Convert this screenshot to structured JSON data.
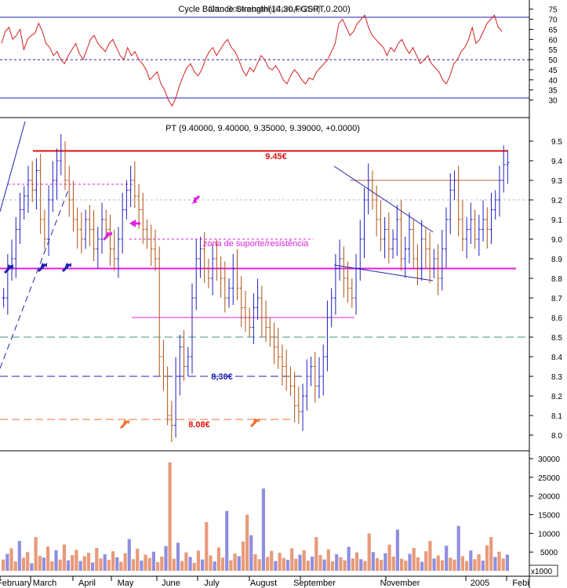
{
  "chart_data": [
    {
      "type": "line",
      "title": "Cycle Balance Strength(14,30,FGSRT,0.200)",
      "title_overlay": "Otto Bookabaleh(ComAx200)",
      "ylim": [
        25,
        76
      ],
      "yticks": [
        30,
        35,
        40,
        45,
        50,
        55,
        60,
        65,
        70,
        75
      ],
      "reference_lines": [
        {
          "value": 71,
          "style": "solid"
        },
        {
          "value": 50,
          "style": "dotted"
        },
        {
          "value": 31,
          "style": "solid"
        }
      ],
      "series": [
        {
          "color": "#d42020",
          "values": [
            58,
            64,
            66,
            60,
            62,
            65,
            55,
            60,
            62,
            63,
            68,
            64,
            58,
            56,
            52,
            54,
            50,
            48,
            52,
            55,
            58,
            53,
            50,
            55,
            60,
            62,
            58,
            56,
            54,
            58,
            60,
            56,
            52,
            50,
            56,
            52,
            54,
            50,
            48,
            45,
            40,
            42,
            44,
            38,
            35,
            30,
            27,
            31,
            37,
            42,
            46,
            48,
            44,
            42,
            45,
            50,
            54,
            56,
            52,
            55,
            58,
            60,
            56,
            54,
            50,
            45,
            42,
            46,
            44,
            48,
            52,
            50,
            46,
            45,
            47,
            44,
            40,
            38,
            42,
            45,
            43,
            40,
            38,
            41,
            40,
            44,
            46,
            48,
            50,
            54,
            58,
            68,
            70,
            66,
            62,
            64,
            68,
            70,
            72,
            66,
            62,
            60,
            58,
            56,
            52,
            56,
            54,
            58,
            60,
            56,
            53,
            56,
            52,
            48,
            50,
            52,
            48,
            46,
            44,
            40,
            38,
            42,
            48,
            50,
            54,
            56,
            60,
            66,
            58,
            60,
            64,
            68,
            70,
            72,
            66,
            64
          ]
        }
      ]
    },
    {
      "type": "candlestick",
      "title": "PT (9.40000, 9.40000, 9.35000, 9.39000, +0.0000)",
      "ylim": [
        7.9,
        9.55
      ],
      "yticks": [
        8.0,
        8.1,
        8.2,
        8.3,
        8.4,
        8.5,
        8.6,
        8.7,
        8.8,
        8.9,
        9.0,
        9.1,
        9.2,
        9.3,
        9.4,
        9.5
      ],
      "x_labels": [
        "February",
        "March",
        "April",
        "May",
        "June",
        "July",
        "August",
        "September",
        "November",
        "2005",
        "Febi"
      ],
      "close_values": [
        8.7,
        8.85,
        8.9,
        9.05,
        9.15,
        9.22,
        9.3,
        9.25,
        9.35,
        9.1,
        9.0,
        9.2,
        9.3,
        9.4,
        9.45,
        9.3,
        9.2,
        9.1,
        9.05,
        9.0,
        9.1,
        9.05,
        8.95,
        9.0,
        9.1,
        9.05,
        8.95,
        8.9,
        9.0,
        9.15,
        9.25,
        9.3,
        9.22,
        9.15,
        9.05,
        9.0,
        8.95,
        8.9,
        8.4,
        8.3,
        8.1,
        8.05,
        8.3,
        8.45,
        8.35,
        8.4,
        8.7,
        8.9,
        8.95,
        8.85,
        8.8,
        8.9,
        8.85,
        8.8,
        8.7,
        8.75,
        8.85,
        8.75,
        8.65,
        8.6,
        8.55,
        8.65,
        8.7,
        8.6,
        8.55,
        8.5,
        8.45,
        8.4,
        8.35,
        8.3,
        8.25,
        8.15,
        8.12,
        8.2,
        8.3,
        8.35,
        8.25,
        8.3,
        8.4,
        8.6,
        8.7,
        8.85,
        8.9,
        8.8,
        8.75,
        8.7,
        8.85,
        9.0,
        9.2,
        9.3,
        9.2,
        9.1,
        9.0,
        9.05,
        8.95,
        9.0,
        9.1,
        8.9,
        8.95,
        9.05,
        8.9,
        8.85,
        9.0,
        8.95,
        8.85,
        8.9,
        8.8,
        8.95,
        9.1,
        9.25,
        9.3,
        9.1,
        9.0,
        9.05,
        9.1,
        9.0,
        9.05,
        9.1,
        9.05,
        9.15,
        9.2,
        9.3,
        9.38,
        9.39
      ],
      "annotations": [
        {
          "text": "9.45€",
          "color": "#e01010"
        },
        {
          "text": "8,30€",
          "color": "#2020b0"
        },
        {
          "text": "8.08€",
          "color": "#e01010"
        },
        {
          "text": "zona de suporte/resistência",
          "color": "#e020e0"
        }
      ],
      "horizontal_lines": [
        {
          "value": 9.45,
          "color": "#e01010",
          "style": "solid"
        },
        {
          "value": 8.85,
          "color": "#e020e0",
          "style": "solid"
        },
        {
          "value": 9.3,
          "color": "#c06040",
          "style": "solid"
        },
        {
          "value": 8.6,
          "color": "#e020e0",
          "style": "solid"
        },
        {
          "value": 8.5,
          "color": "#409080",
          "style": "dashed"
        },
        {
          "value": 8.3,
          "color": "#2020b0",
          "style": "dashed"
        },
        {
          "value": 8.08,
          "color": "#f07030",
          "style": "dashed"
        },
        {
          "value": 9.0,
          "color": "#e020e0",
          "style": "dotted"
        },
        {
          "value": 9.28,
          "color": "#e020e0",
          "style": "dotted"
        },
        {
          "value": 9.2,
          "color": "#bbbbbb",
          "style": "dotted"
        }
      ]
    },
    {
      "type": "bar",
      "title": "",
      "ylabel": "x1000",
      "ylim": [
        0,
        31000
      ],
      "yticks": [
        5000,
        10000,
        15000,
        20000,
        25000,
        30000
      ],
      "values": [
        3000,
        4500,
        6000,
        2500,
        8000,
        3500,
        5000,
        2000,
        9000,
        4000,
        3500,
        6500,
        2500,
        5500,
        3000,
        7000,
        2800,
        4200,
        5600,
        2600,
        3900,
        4800,
        2200,
        6100,
        3300,
        4400,
        2900,
        5200,
        3600,
        2400,
        4700,
        8500,
        3100,
        5900,
        2700,
        4300,
        3400,
        5100,
        2300,
        3800,
        6600,
        29000,
        3200,
        7500,
        2600,
        4900,
        3700,
        2100,
        5400,
        3000,
        13000,
        4100,
        2500,
        6200,
        3500,
        16000,
        2800,
        4600,
        3900,
        7800,
        15000,
        9500,
        4400,
        3100,
        22000,
        3700,
        5300,
        2600,
        4800,
        3400,
        2900,
        6000,
        3200,
        4300,
        5500,
        2700,
        3800,
        9000,
        4200,
        3000,
        5700,
        2500,
        4400,
        3600,
        2800,
        6400,
        3300,
        4900,
        3100,
        2600,
        10000,
        5000,
        3400,
        2900,
        4700,
        7000,
        3800,
        11000,
        3200,
        2700,
        4500,
        6100,
        3600,
        2400,
        5200,
        8000,
        3300,
        4100,
        2800,
        6700,
        3500,
        3000,
        12000,
        3900,
        2600,
        5400,
        3100,
        4400,
        2700,
        6800,
        9000,
        3700,
        5100,
        3300,
        4300
      ]
    }
  ]
}
